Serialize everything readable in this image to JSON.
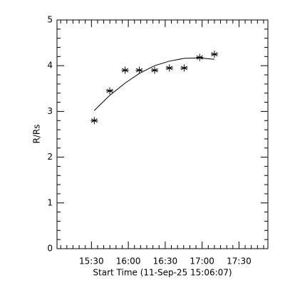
{
  "chart_data": {
    "type": "scatter",
    "x_label": "Start Time (11-Sep-25 15:06:07)",
    "y_label": "R/Rs",
    "x": [
      32.3,
      44.9,
      57.4,
      68.9,
      81.4,
      93.4,
      105.4,
      118,
      130
    ],
    "series": [
      {
        "color": "#000000",
        "marker": "asterisk",
        "values": [
          2.8,
          3.45,
          3.9,
          3.9,
          3.9,
          3.95,
          3.95,
          4.18,
          4.25
        ]
      },
      {
        "color": "#000000",
        "marker": "none",
        "line": true,
        "values": [
          3.02,
          3.35,
          3.62,
          3.83,
          4.0,
          4.1,
          4.16,
          4.17,
          4.14
        ]
      }
    ],
    "xlim": [
      2,
      173.5
    ],
    "xticks": [
      {
        "value": 30,
        "label": "15:30"
      },
      {
        "value": 60,
        "label": "16:00"
      },
      {
        "value": 90,
        "label": "16:30"
      },
      {
        "value": 120,
        "label": "17:00"
      },
      {
        "value": 150,
        "label": "17:30"
      }
    ],
    "ylim": [
      0,
      5
    ],
    "yticks": [
      0,
      1,
      2,
      3,
      4,
      5
    ],
    "grid": false
  }
}
